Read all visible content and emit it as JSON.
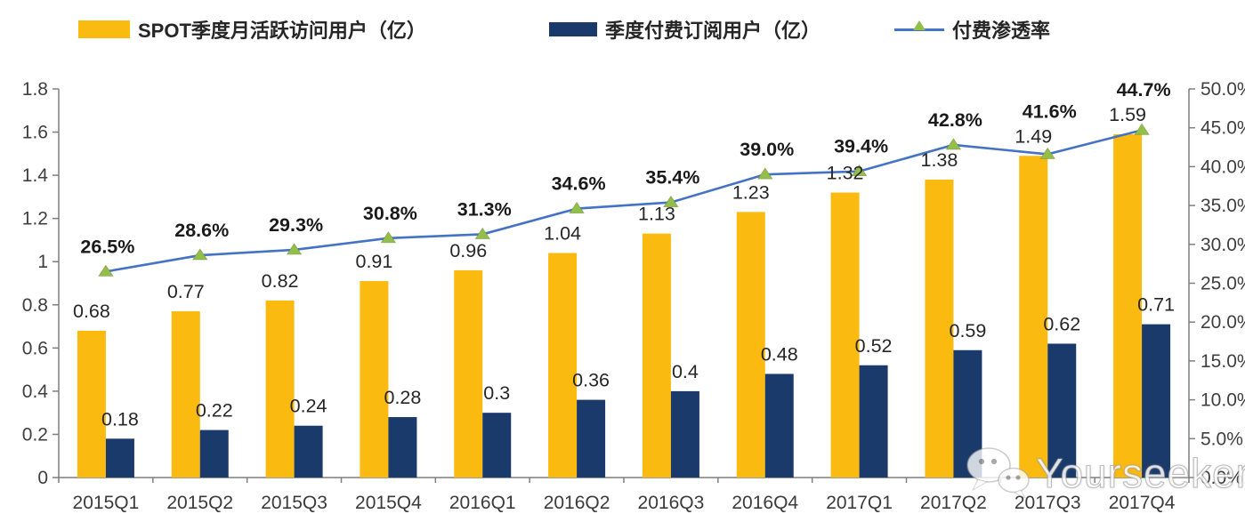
{
  "legend": {
    "items": [
      {
        "label": "SPOT季度月活跃访问用户（亿）",
        "swatch": "bar",
        "color": "#FBBA0F"
      },
      {
        "label": "季度付费订阅用户（亿）",
        "swatch": "bar",
        "color": "#1A3A6B"
      },
      {
        "label": "付费渗透率",
        "swatch": "line",
        "color": "#4472C4",
        "marker_color": "#94BE4A"
      }
    ]
  },
  "watermark": {
    "text": "Yourseeker",
    "icon": "wechat-icon"
  },
  "colors": {
    "axis": "#7F7F7F",
    "bar_label": "#262626",
    "pct_label": "#1A1A1A",
    "tick_label": "#3F3F3F",
    "category_label": "#3B3B3B"
  },
  "chart_data": {
    "type": "bar",
    "subtype": "combo dual-axis: grouped bars + line",
    "title": "",
    "grid": false,
    "legend_position": "top",
    "categories": [
      "2015Q1",
      "2015Q2",
      "2015Q3",
      "2015Q4",
      "2016Q1",
      "2016Q2",
      "2016Q3",
      "2016Q4",
      "2017Q1",
      "2017Q2",
      "2017Q3",
      "2017Q4"
    ],
    "series": [
      {
        "name": "SPOT季度月活跃访问用户（亿）",
        "type": "bar",
        "axis": "left",
        "color": "#FBBA0F",
        "values": [
          0.68,
          0.77,
          0.82,
          0.91,
          0.96,
          1.04,
          1.13,
          1.23,
          1.32,
          1.38,
          1.49,
          1.59
        ],
        "labels": [
          "0.68",
          "0.77",
          "0.82",
          "0.91",
          "0.96",
          "1.04",
          "1.13",
          "1.23",
          "1.32",
          "1.38",
          "1.49",
          "1.59"
        ]
      },
      {
        "name": "季度付费订阅用户（亿）",
        "type": "bar",
        "axis": "left",
        "color": "#1A3A6B",
        "values": [
          0.18,
          0.22,
          0.24,
          0.28,
          0.3,
          0.36,
          0.4,
          0.48,
          0.52,
          0.59,
          0.62,
          0.71
        ],
        "labels": [
          "0.18",
          "0.22",
          "0.24",
          "0.28",
          "0.3",
          "0.36",
          "0.4",
          "0.48",
          "0.52",
          "0.59",
          "0.62",
          "0.71"
        ]
      },
      {
        "name": "付费渗透率",
        "type": "line",
        "axis": "right",
        "color": "#4472C4",
        "marker": "triangle",
        "marker_color": "#94BE4A",
        "values": [
          26.5,
          28.6,
          29.3,
          30.8,
          31.3,
          34.6,
          35.4,
          39.0,
          39.4,
          42.8,
          41.6,
          44.7
        ],
        "labels": [
          "26.5%",
          "28.6%",
          "29.3%",
          "30.8%",
          "31.3%",
          "34.6%",
          "35.4%",
          "39.0%",
          "39.4%",
          "42.8%",
          "41.6%",
          "44.7%"
        ]
      }
    ],
    "left_axis": {
      "min": 0,
      "max": 1.8,
      "step": 0.2,
      "tick_labels": [
        "0",
        "0.2",
        "0.4",
        "0.6",
        "0.8",
        "1",
        "1.2",
        "1.4",
        "1.6",
        "1.8"
      ]
    },
    "right_axis": {
      "min": 0,
      "max": 50,
      "step": 5,
      "tick_labels": [
        "0.0%",
        "5.0%",
        "10.0%",
        "15.0%",
        "20.0%",
        "25.0%",
        "30.0%",
        "35.0%",
        "40.0%",
        "45.0%",
        "50.0%"
      ]
    }
  }
}
